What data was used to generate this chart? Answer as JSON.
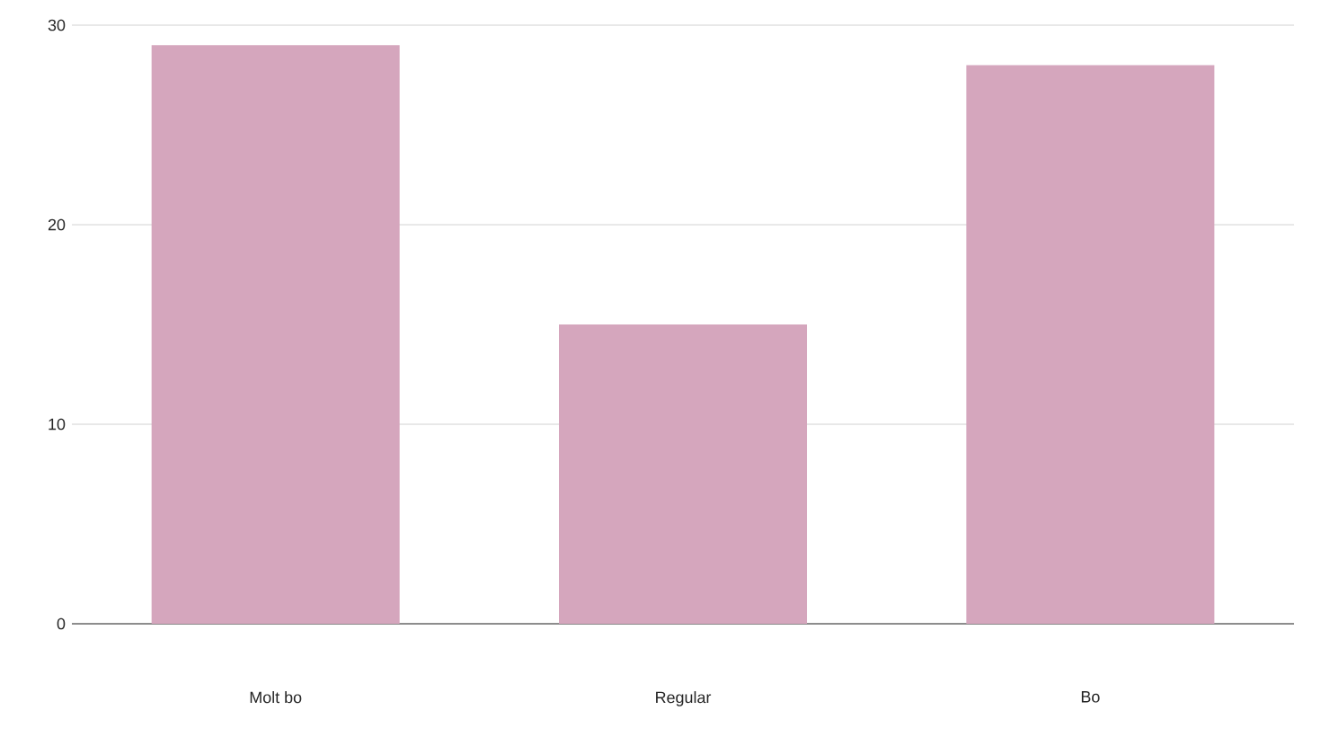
{
  "chart_data": {
    "type": "bar",
    "categories": [
      "Molt bo",
      "Regular",
      "Bo"
    ],
    "values": [
      29,
      15,
      28
    ],
    "color": "#d5a6bd",
    "ylim": [
      0,
      30
    ],
    "yticks": [
      0,
      10,
      20,
      30
    ],
    "grid": "y"
  }
}
